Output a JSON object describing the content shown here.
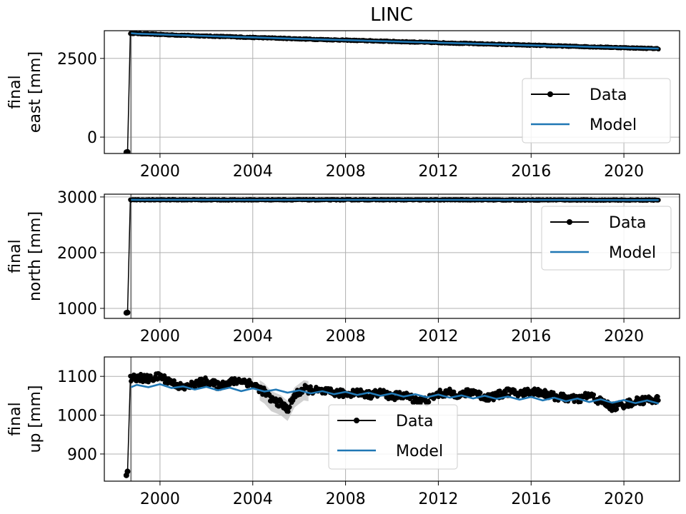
{
  "figure": {
    "title": "LINC",
    "legend_labels": {
      "data": "Data",
      "model": "Model"
    },
    "colors": {
      "data": "#000000",
      "model": "#1f77b4",
      "grid": "#b0b0b0",
      "uncertainty": "#bdbdbd",
      "event_line": "#808080"
    }
  },
  "chart_data": [
    {
      "type": "line",
      "panel": "east",
      "title": "LINC",
      "ylabel": [
        "final",
        "east [mm]"
      ],
      "xlabel": "",
      "x_range": [
        1997.6,
        2022.4
      ],
      "ylim": [
        -520,
        3380
      ],
      "xticks": [
        2000,
        2004,
        2008,
        2012,
        2016,
        2020
      ],
      "yticks": [
        0,
        2500
      ],
      "grid": true,
      "legend_position": "lower right",
      "break_time": 1998.75,
      "series": [
        {
          "name": "Data",
          "style": "line-with-markers",
          "x": [
            1998.55,
            1998.6,
            1998.72,
            1999,
            2000,
            2001,
            2002,
            2003,
            2004,
            2005,
            2006,
            2007,
            2008,
            2009,
            2010,
            2011,
            2012,
            2013,
            2014,
            2015,
            2016,
            2017,
            2018,
            2019,
            2020,
            2021,
            2021.5
          ],
          "y": [
            -480,
            -470,
            3300,
            3290,
            3260,
            3235,
            3210,
            3190,
            3165,
            3145,
            3120,
            3100,
            3080,
            3060,
            3040,
            3020,
            3000,
            2980,
            2960,
            2940,
            2920,
            2900,
            2880,
            2860,
            2840,
            2820,
            2810
          ]
        },
        {
          "name": "Model",
          "style": "line",
          "x": [
            1998.75,
            1999,
            2000,
            2001,
            2002,
            2003,
            2004,
            2005,
            2006,
            2007,
            2008,
            2009,
            2010,
            2011,
            2012,
            2013,
            2014,
            2015,
            2016,
            2017,
            2018,
            2019,
            2020,
            2021,
            2021.5
          ],
          "y": [
            3300,
            3285,
            3262,
            3238,
            3213,
            3190,
            3168,
            3145,
            3122,
            3100,
            3080,
            3058,
            3038,
            3018,
            2998,
            2978,
            2958,
            2938,
            2918,
            2898,
            2878,
            2858,
            2840,
            2820,
            2810
          ]
        }
      ]
    },
    {
      "type": "line",
      "panel": "north",
      "ylabel": [
        "final",
        "north [mm]"
      ],
      "xlabel": "",
      "x_range": [
        1997.6,
        2022.4
      ],
      "ylim": [
        820,
        3050
      ],
      "xticks": [
        2000,
        2004,
        2008,
        2012,
        2016,
        2020
      ],
      "yticks": [
        1000,
        2000,
        3000
      ],
      "grid": true,
      "legend_position": "upper right",
      "break_time": 1998.75,
      "series": [
        {
          "name": "Data",
          "style": "line-with-markers",
          "x": [
            1998.55,
            1998.6,
            1998.72,
            1999,
            2001,
            2003,
            2005,
            2007,
            2009,
            2011,
            2013,
            2015,
            2017,
            2019,
            2021,
            2021.5
          ],
          "y": [
            920,
            925,
            2950,
            2948,
            2950,
            2947,
            2950,
            2948,
            2950,
            2947,
            2949,
            2946,
            2947,
            2944,
            2945,
            2944
          ]
        },
        {
          "name": "Model",
          "style": "line",
          "x": [
            1998.75,
            1999,
            2001,
            2003,
            2005,
            2007,
            2009,
            2011,
            2013,
            2015,
            2017,
            2019,
            2021,
            2021.5
          ],
          "y": [
            2950,
            2949,
            2949,
            2948,
            2948,
            2948,
            2948,
            2947,
            2947,
            2946,
            2946,
            2945,
            2944,
            2944
          ]
        }
      ]
    },
    {
      "type": "line",
      "panel": "up",
      "ylabel": [
        "final",
        "up [mm]"
      ],
      "xlabel": "",
      "x_range": [
        1997.6,
        2022.4
      ],
      "ylim": [
        830,
        1150
      ],
      "xticks": [
        2000,
        2004,
        2008,
        2012,
        2016,
        2020
      ],
      "yticks": [
        900,
        1000,
        1100
      ],
      "grid": true,
      "legend_position": "lower center",
      "break_time": 1998.75,
      "series": [
        {
          "name": "Data",
          "style": "line-with-markers",
          "x": [
            1998.55,
            1998.6,
            1998.72,
            1999,
            1999.5,
            2000,
            2000.5,
            2001,
            2001.5,
            2002,
            2002.5,
            2003,
            2003.5,
            2004,
            2004.5,
            2004.8,
            2005.2,
            2005.5,
            2005.8,
            2006.2,
            2006.8,
            2007.5,
            2008,
            2008.5,
            2009,
            2009.5,
            2010,
            2010.5,
            2011,
            2011.5,
            2012,
            2012.5,
            2013,
            2013.5,
            2014,
            2014.5,
            2015,
            2015.5,
            2016,
            2016.5,
            2017,
            2017.5,
            2018,
            2018.5,
            2019,
            2019.5,
            2020,
            2020.5,
            2021,
            2021.5
          ],
          "y": [
            845,
            855,
            1092,
            1098,
            1093,
            1100,
            1085,
            1070,
            1080,
            1088,
            1076,
            1084,
            1090,
            1080,
            1060,
            1040,
            1030,
            1015,
            1050,
            1068,
            1062,
            1058,
            1055,
            1060,
            1052,
            1058,
            1048,
            1052,
            1040,
            1038,
            1055,
            1058,
            1052,
            1062,
            1045,
            1050,
            1060,
            1055,
            1062,
            1058,
            1048,
            1045,
            1040,
            1052,
            1035,
            1020,
            1028,
            1035,
            1040,
            1040
          ]
        },
        {
          "name": "Model",
          "style": "line",
          "x": [
            1998.75,
            1999,
            1999.5,
            2000,
            2000.5,
            2001,
            2001.5,
            2002,
            2002.5,
            2003,
            2003.5,
            2004,
            2004.5,
            2005,
            2005.5,
            2006,
            2006.5,
            2007,
            2007.5,
            2008,
            2008.5,
            2009,
            2009.5,
            2010,
            2010.5,
            2011,
            2011.5,
            2012,
            2012.5,
            2013,
            2013.5,
            2014,
            2014.5,
            2015,
            2015.5,
            2016,
            2016.5,
            2017,
            2017.5,
            2018,
            2018.5,
            2019,
            2019.5,
            2020,
            2020.5,
            2021,
            2021.5
          ],
          "y": [
            1072,
            1078,
            1072,
            1080,
            1070,
            1074,
            1066,
            1073,
            1064,
            1071,
            1062,
            1069,
            1061,
            1066,
            1058,
            1064,
            1056,
            1062,
            1054,
            1060,
            1052,
            1058,
            1050,
            1056,
            1048,
            1054,
            1046,
            1053,
            1045,
            1051,
            1043,
            1050,
            1042,
            1048,
            1040,
            1047,
            1038,
            1045,
            1036,
            1043,
            1034,
            1041,
            1032,
            1039,
            1031,
            1038,
            1030
          ]
        }
      ]
    }
  ]
}
